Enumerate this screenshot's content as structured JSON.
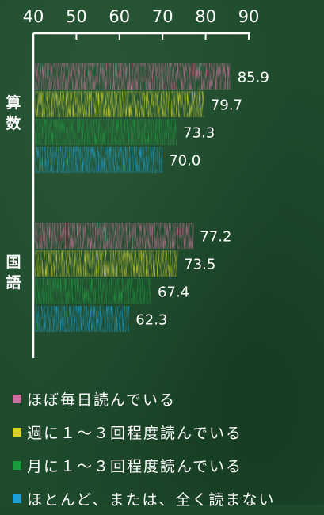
{
  "chart_data": {
    "type": "bar",
    "orientation": "horizontal",
    "xlim": [
      40,
      90
    ],
    "x_ticks": [
      40,
      50,
      60,
      70,
      80,
      90
    ],
    "x_axis_position": "top",
    "grid": false,
    "legend_position": "bottom",
    "categories": [
      {
        "label": "算数",
        "chars": [
          "算",
          "数"
        ]
      },
      {
        "label": "国語",
        "chars": [
          "国",
          "語"
        ]
      }
    ],
    "series": [
      {
        "name": "ほぼ毎日読んでいる",
        "color": "#c96f9b",
        "values": [
          85.9,
          77.2
        ],
        "labels": [
          "85.9",
          "77.2"
        ]
      },
      {
        "name": "週に１～３回程度読んでいる",
        "color": "#d4d42a",
        "values": [
          79.7,
          73.5
        ],
        "labels": [
          "79.7",
          "73.5"
        ]
      },
      {
        "name": "月に１～３回程度読んでいる",
        "color": "#1e9a3e",
        "values": [
          73.3,
          67.4
        ],
        "labels": [
          "73.3",
          "67.4"
        ]
      },
      {
        "name": "ほとんど、または、全く読まない",
        "color": "#1a9fd6",
        "values": [
          70.0,
          62.3
        ],
        "labels": [
          "70.0",
          "62.3"
        ]
      }
    ]
  }
}
